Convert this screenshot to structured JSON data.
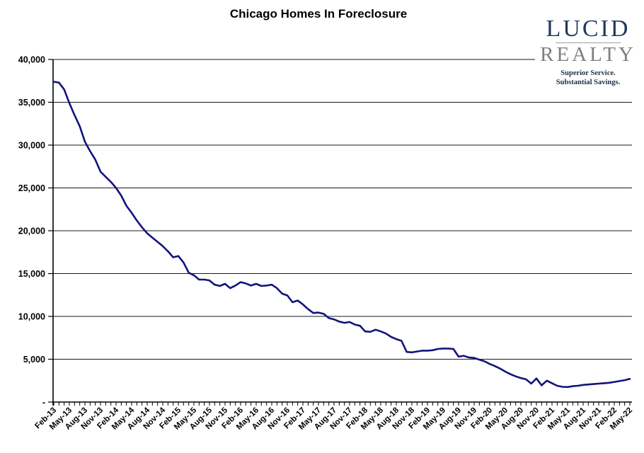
{
  "title": "Chicago Homes In Foreclosure",
  "logo": {
    "name": "LUCID",
    "name2": "REALTY",
    "tagline_line1": "Superior Service.",
    "tagline_line2": "Substantial Savings.",
    "color_primary": "#1e3a5f",
    "color_secondary": "#7f7f7f"
  },
  "chart_data": {
    "type": "line",
    "title": "Chicago Homes In Foreclosure",
    "xlabel": "",
    "ylabel": "",
    "ylim": [
      0,
      40000
    ],
    "y_tick_step": 5000,
    "y_tick_labels": [
      "40,000",
      "35,000",
      "30,000",
      "25,000",
      "20,000",
      "15,000",
      "10,000",
      "5,000",
      "-"
    ],
    "grid": true,
    "legend_position": "none",
    "line_color": "#13137c",
    "x_start": "Feb-13",
    "x_end": "May-22",
    "x_frequency": "monthly",
    "x_label_every_n_points": 3,
    "x_tick_labels": [
      "Feb-13",
      "May-13",
      "Aug-13",
      "Nov-13",
      "Feb-14",
      "May-14",
      "Aug-14",
      "Nov-14",
      "Feb-15",
      "May-15",
      "Aug-15",
      "Nov-15",
      "Feb-16",
      "May-16",
      "Aug-16",
      "Nov-16",
      "Feb-17",
      "May-17",
      "Aug-17",
      "Nov-17",
      "Feb-18",
      "May-18",
      "Aug-18",
      "Nov-18",
      "Feb-19",
      "May-19",
      "Aug-19",
      "Nov-19",
      "Feb-20",
      "May-20",
      "Aug-20",
      "Nov-20",
      "Feb-21",
      "May-21",
      "Aug-21",
      "Nov-21",
      "Feb-22",
      "May-22"
    ],
    "values": [
      37400,
      37300,
      36500,
      34900,
      33500,
      32200,
      30400,
      29300,
      28300,
      26900,
      26300,
      25700,
      25000,
      24100,
      22900,
      22100,
      21200,
      20400,
      19700,
      19200,
      18700,
      18200,
      17600,
      16900,
      17050,
      16300,
      15100,
      14800,
      14300,
      14300,
      14200,
      13700,
      13550,
      13800,
      13300,
      13600,
      14000,
      13850,
      13600,
      13800,
      13550,
      13600,
      13700,
      13300,
      12650,
      12450,
      11650,
      11850,
      11400,
      10850,
      10400,
      10450,
      10300,
      9800,
      9650,
      9400,
      9250,
      9350,
      9050,
      8900,
      8250,
      8200,
      8450,
      8250,
      8000,
      7600,
      7350,
      7150,
      5850,
      5800,
      5900,
      6000,
      6000,
      6050,
      6200,
      6250,
      6250,
      6200,
      5300,
      5400,
      5200,
      5150,
      4950,
      4750,
      4450,
      4200,
      3900,
      3550,
      3250,
      3000,
      2800,
      2650,
      2150,
      2750,
      1950,
      2500,
      2200,
      1900,
      1780,
      1750,
      1850,
      1900,
      2000,
      2050,
      2100,
      2150,
      2200,
      2250,
      2350,
      2450,
      2550,
      2700
    ]
  }
}
